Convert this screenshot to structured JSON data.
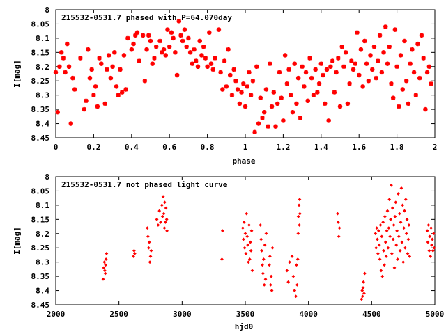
{
  "chart_data": [
    {
      "type": "scatter",
      "title": "215532-0531.7 phased with P=64.070day",
      "xlabel": "phase",
      "ylabel": "I[mag]",
      "xlim": [
        0,
        2
      ],
      "ylim": [
        8.45,
        8
      ],
      "y_inverted": true,
      "grid": false,
      "legend": "none",
      "marker_color": "#ff0000",
      "marker": "filled-star",
      "xticks": [
        "0",
        "0.2",
        "0.4",
        "0.6",
        "0.8",
        "1",
        "1.2",
        "1.4",
        "1.6",
        "1.8",
        "2"
      ],
      "yticks": [
        "8",
        "8.05",
        "8.1",
        "8.15",
        "8.2",
        "8.25",
        "8.3",
        "8.35",
        "8.4",
        "8.45"
      ],
      "points": [
        [
          0.0,
          8.22
        ],
        [
          0.01,
          8.36
        ],
        [
          0.02,
          8.2
        ],
        [
          0.03,
          8.15
        ],
        [
          0.04,
          8.17
        ],
        [
          0.05,
          8.22
        ],
        [
          0.06,
          8.12
        ],
        [
          0.07,
          8.2
        ],
        [
          0.08,
          8.4
        ],
        [
          0.09,
          8.24
        ],
        [
          0.1,
          8.28
        ],
        [
          0.13,
          8.17
        ],
        [
          0.15,
          8.35
        ],
        [
          0.16,
          8.32
        ],
        [
          0.17,
          8.14
        ],
        [
          0.18,
          8.24
        ],
        [
          0.19,
          8.21
        ],
        [
          0.2,
          8.3
        ],
        [
          0.21,
          8.27
        ],
        [
          0.22,
          8.34
        ],
        [
          0.23,
          8.17
        ],
        [
          0.24,
          8.19
        ],
        [
          0.26,
          8.33
        ],
        [
          0.27,
          8.21
        ],
        [
          0.28,
          8.16
        ],
        [
          0.29,
          8.24
        ],
        [
          0.3,
          8.2
        ],
        [
          0.31,
          8.15
        ],
        [
          0.32,
          8.27
        ],
        [
          0.33,
          8.3
        ],
        [
          0.34,
          8.21
        ],
        [
          0.35,
          8.29
        ],
        [
          0.36,
          8.16
        ],
        [
          0.37,
          8.28
        ],
        [
          0.38,
          8.1
        ],
        [
          0.4,
          8.14
        ],
        [
          0.41,
          8.12
        ],
        [
          0.42,
          8.09
        ],
        [
          0.43,
          8.08
        ],
        [
          0.44,
          8.18
        ],
        [
          0.46,
          8.09
        ],
        [
          0.47,
          8.25
        ],
        [
          0.48,
          8.14
        ],
        [
          0.49,
          8.09
        ],
        [
          0.5,
          8.11
        ],
        [
          0.51,
          8.19
        ],
        [
          0.52,
          8.17
        ],
        [
          0.53,
          8.13
        ],
        [
          0.55,
          8.11
        ],
        [
          0.56,
          8.15
        ],
        [
          0.57,
          8.14
        ],
        [
          0.58,
          8.16
        ],
        [
          0.59,
          8.07
        ],
        [
          0.6,
          8.13
        ],
        [
          0.61,
          8.08
        ],
        [
          0.62,
          8.1
        ],
        [
          0.63,
          8.15
        ],
        [
          0.64,
          8.23
        ],
        [
          0.65,
          8.04
        ],
        [
          0.66,
          8.09
        ],
        [
          0.67,
          8.11
        ],
        [
          0.68,
          8.07
        ],
        [
          0.69,
          8.13
        ],
        [
          0.7,
          8.1
        ],
        [
          0.71,
          8.15
        ],
        [
          0.72,
          8.19
        ],
        [
          0.73,
          8.14
        ],
        [
          0.74,
          8.18
        ],
        [
          0.75,
          8.2
        ],
        [
          0.76,
          8.11
        ],
        [
          0.77,
          8.16
        ],
        [
          0.78,
          8.13
        ],
        [
          0.79,
          8.17
        ],
        [
          0.8,
          8.2
        ],
        [
          0.81,
          8.08
        ],
        [
          0.82,
          8.19
        ],
        [
          0.83,
          8.21
        ],
        [
          0.84,
          8.17
        ],
        [
          0.86,
          8.07
        ],
        [
          0.87,
          8.22
        ],
        [
          0.88,
          8.28
        ],
        [
          0.89,
          8.18
        ],
        [
          0.9,
          8.27
        ],
        [
          0.91,
          8.14
        ],
        [
          0.92,
          8.23
        ],
        [
          0.93,
          8.3
        ],
        [
          0.94,
          8.21
        ],
        [
          0.95,
          8.25
        ],
        [
          0.96,
          8.28
        ],
        [
          0.97,
          8.33
        ],
        [
          0.98,
          8.29
        ],
        [
          0.99,
          8.26
        ],
        [
          1.0,
          8.34
        ],
        [
          1.01,
          8.27
        ],
        [
          1.02,
          8.22
        ],
        [
          1.03,
          8.3
        ],
        [
          1.04,
          8.25
        ],
        [
          1.05,
          8.43
        ],
        [
          1.06,
          8.2
        ],
        [
          1.07,
          8.4
        ],
        [
          1.08,
          8.31
        ],
        [
          1.09,
          8.38
        ],
        [
          1.1,
          8.36
        ],
        [
          1.11,
          8.28
        ],
        [
          1.12,
          8.41
        ],
        [
          1.13,
          8.19
        ],
        [
          1.14,
          8.34
        ],
        [
          1.15,
          8.29
        ],
        [
          1.16,
          8.41
        ],
        [
          1.17,
          8.33
        ],
        [
          1.18,
          8.22
        ],
        [
          1.19,
          8.31
        ],
        [
          1.2,
          8.39
        ],
        [
          1.21,
          8.16
        ],
        [
          1.22,
          8.26
        ],
        [
          1.23,
          8.21
        ],
        [
          1.24,
          8.3
        ],
        [
          1.25,
          8.36
        ],
        [
          1.26,
          8.19
        ],
        [
          1.27,
          8.33
        ],
        [
          1.28,
          8.24
        ],
        [
          1.29,
          8.38
        ],
        [
          1.3,
          8.2
        ],
        [
          1.31,
          8.27
        ],
        [
          1.32,
          8.22
        ],
        [
          1.33,
          8.32
        ],
        [
          1.34,
          8.17
        ],
        [
          1.35,
          8.24
        ],
        [
          1.36,
          8.3
        ],
        [
          1.37,
          8.21
        ],
        [
          1.38,
          8.29
        ],
        [
          1.39,
          8.26
        ],
        [
          1.4,
          8.19
        ],
        [
          1.41,
          8.23
        ],
        [
          1.42,
          8.33
        ],
        [
          1.43,
          8.21
        ],
        [
          1.44,
          8.39
        ],
        [
          1.45,
          8.2
        ],
        [
          1.46,
          8.18
        ],
        [
          1.47,
          8.29
        ],
        [
          1.48,
          8.22
        ],
        [
          1.49,
          8.17
        ],
        [
          1.5,
          8.34
        ],
        [
          1.51,
          8.13
        ],
        [
          1.52,
          8.2
        ],
        [
          1.53,
          8.15
        ],
        [
          1.54,
          8.33
        ],
        [
          1.55,
          8.26
        ],
        [
          1.56,
          8.18
        ],
        [
          1.57,
          8.21
        ],
        [
          1.58,
          8.19
        ],
        [
          1.59,
          8.08
        ],
        [
          1.6,
          8.23
        ],
        [
          1.61,
          8.14
        ],
        [
          1.62,
          8.27
        ],
        [
          1.63,
          8.11
        ],
        [
          1.64,
          8.19
        ],
        [
          1.65,
          8.25
        ],
        [
          1.66,
          8.16
        ],
        [
          1.67,
          8.21
        ],
        [
          1.68,
          8.13
        ],
        [
          1.69,
          8.24
        ],
        [
          1.7,
          8.18
        ],
        [
          1.71,
          8.09
        ],
        [
          1.72,
          8.22
        ],
        [
          1.73,
          8.15
        ],
        [
          1.74,
          8.06
        ],
        [
          1.75,
          8.19
        ],
        [
          1.76,
          8.13
        ],
        [
          1.77,
          8.26
        ],
        [
          1.78,
          8.31
        ],
        [
          1.79,
          8.07
        ],
        [
          1.8,
          8.2
        ],
        [
          1.81,
          8.34
        ],
        [
          1.82,
          8.16
        ],
        [
          1.83,
          8.28
        ],
        [
          1.84,
          8.11
        ],
        [
          1.85,
          8.25
        ],
        [
          1.86,
          8.33
        ],
        [
          1.87,
          8.19
        ],
        [
          1.88,
          8.14
        ],
        [
          1.89,
          8.22
        ],
        [
          1.9,
          8.3
        ],
        [
          1.91,
          8.12
        ],
        [
          1.92,
          8.24
        ],
        [
          1.93,
          8.09
        ],
        [
          1.94,
          8.17
        ],
        [
          1.95,
          8.35
        ],
        [
          1.96,
          8.22
        ],
        [
          1.97,
          8.2
        ],
        [
          1.98,
          8.26
        ]
      ]
    },
    {
      "type": "scatter",
      "title": "215532-0531.7 not phased light curve",
      "xlabel": "hjd0",
      "ylabel": "I[mag]",
      "xlim": [
        2000,
        5000
      ],
      "ylim": [
        8.45,
        8
      ],
      "y_inverted": true,
      "grid": false,
      "legend": "none",
      "marker_color": "#ff0000",
      "marker": "diamond",
      "xticks": [
        "2000",
        "2500",
        "3000",
        "3500",
        "4000",
        "4500",
        "5000"
      ],
      "yticks": [
        "8",
        "8.05",
        "8.1",
        "8.15",
        "8.2",
        "8.25",
        "8.3",
        "8.35",
        "8.4",
        "8.45"
      ],
      "points": [
        [
          2375,
          8.36
        ],
        [
          2380,
          8.32
        ],
        [
          2385,
          8.3
        ],
        [
          2388,
          8.33
        ],
        [
          2392,
          8.34
        ],
        [
          2395,
          8.31
        ],
        [
          2398,
          8.29
        ],
        [
          2402,
          8.27
        ],
        [
          2615,
          8.28
        ],
        [
          2620,
          8.26
        ],
        [
          2625,
          8.27
        ],
        [
          2725,
          8.18
        ],
        [
          2730,
          8.21
        ],
        [
          2735,
          8.25
        ],
        [
          2740,
          8.23
        ],
        [
          2745,
          8.3
        ],
        [
          2750,
          8.28
        ],
        [
          2755,
          8.26
        ],
        [
          2800,
          8.15
        ],
        [
          2810,
          8.17
        ],
        [
          2820,
          8.12
        ],
        [
          2830,
          8.16
        ],
        [
          2840,
          8.1
        ],
        [
          2845,
          8.14
        ],
        [
          2850,
          8.07
        ],
        [
          2855,
          8.13
        ],
        [
          2860,
          8.18
        ],
        [
          2862,
          8.09
        ],
        [
          2868,
          8.16
        ],
        [
          2872,
          8.11
        ],
        [
          2878,
          8.15
        ],
        [
          2880,
          8.19
        ],
        [
          3315,
          8.29
        ],
        [
          3320,
          8.19
        ],
        [
          3480,
          8.18
        ],
        [
          3485,
          8.22
        ],
        [
          3490,
          8.16
        ],
        [
          3495,
          8.25
        ],
        [
          3500,
          8.2
        ],
        [
          3505,
          8.27
        ],
        [
          3510,
          8.13
        ],
        [
          3515,
          8.21
        ],
        [
          3520,
          8.24
        ],
        [
          3525,
          8.3
        ],
        [
          3530,
          8.17
        ],
        [
          3535,
          8.29
        ],
        [
          3540,
          8.23
        ],
        [
          3545,
          8.26
        ],
        [
          3550,
          8.19
        ],
        [
          3555,
          8.33
        ],
        [
          3620,
          8.17
        ],
        [
          3625,
          8.22
        ],
        [
          3630,
          8.26
        ],
        [
          3635,
          8.31
        ],
        [
          3640,
          8.34
        ],
        [
          3645,
          8.29
        ],
        [
          3650,
          8.38
        ],
        [
          3655,
          8.24
        ],
        [
          3660,
          8.36
        ],
        [
          3665,
          8.2
        ],
        [
          3690,
          8.31
        ],
        [
          3695,
          8.28
        ],
        [
          3700,
          8.38
        ],
        [
          3705,
          8.35
        ],
        [
          3710,
          8.4
        ],
        [
          3715,
          8.25
        ],
        [
          3830,
          8.33
        ],
        [
          3840,
          8.37
        ],
        [
          3850,
          8.3
        ],
        [
          3870,
          8.28
        ],
        [
          3880,
          8.35
        ],
        [
          3890,
          8.4
        ],
        [
          3900,
          8.42
        ],
        [
          3905,
          8.31
        ],
        [
          3910,
          8.38
        ],
        [
          3915,
          8.29
        ],
        [
          3918,
          8.2
        ],
        [
          3920,
          8.14
        ],
        [
          3925,
          8.1
        ],
        [
          3928,
          8.17
        ],
        [
          3930,
          8.08
        ],
        [
          3932,
          8.13
        ],
        [
          4230,
          8.13
        ],
        [
          4235,
          8.16
        ],
        [
          4240,
          8.21
        ],
        [
          4245,
          8.18
        ],
        [
          4420,
          8.43
        ],
        [
          4425,
          8.4
        ],
        [
          4428,
          8.42
        ],
        [
          4432,
          8.39
        ],
        [
          4435,
          8.37
        ],
        [
          4440,
          8.41
        ],
        [
          4445,
          8.34
        ],
        [
          4530,
          8.2
        ],
        [
          4535,
          8.25
        ],
        [
          4540,
          8.18
        ],
        [
          4545,
          8.22
        ],
        [
          4550,
          8.27
        ],
        [
          4555,
          8.19
        ],
        [
          4560,
          8.24
        ],
        [
          4565,
          8.29
        ],
        [
          4570,
          8.17
        ],
        [
          4575,
          8.33
        ],
        [
          4580,
          8.21
        ],
        [
          4585,
          8.35
        ],
        [
          4590,
          8.16
        ],
        [
          4595,
          8.26
        ],
        [
          4600,
          8.31
        ],
        [
          4605,
          8.14
        ],
        [
          4610,
          8.23
        ],
        [
          4615,
          8.28
        ],
        [
          4620,
          8.19
        ],
        [
          4625,
          8.12
        ],
        [
          4630,
          8.25
        ],
        [
          4635,
          8.18
        ],
        [
          4640,
          8.08
        ],
        [
          4645,
          8.21
        ],
        [
          4650,
          8.15
        ],
        [
          4655,
          8.03
        ],
        [
          4660,
          8.27
        ],
        [
          4665,
          8.11
        ],
        [
          4670,
          8.22
        ],
        [
          4675,
          8.17
        ],
        [
          4680,
          8.32
        ],
        [
          4685,
          8.14
        ],
        [
          4690,
          8.09
        ],
        [
          4695,
          8.24
        ],
        [
          4700,
          8.19
        ],
        [
          4705,
          8.29
        ],
        [
          4710,
          8.06
        ],
        [
          4715,
          8.21
        ],
        [
          4720,
          8.13
        ],
        [
          4725,
          8.26
        ],
        [
          4730,
          8.16
        ],
        [
          4735,
          8.04
        ],
        [
          4740,
          8.23
        ],
        [
          4745,
          8.1
        ],
        [
          4750,
          8.3
        ],
        [
          4755,
          8.18
        ],
        [
          4760,
          8.12
        ],
        [
          4765,
          8.25
        ],
        [
          4770,
          8.08
        ],
        [
          4775,
          8.2
        ],
        [
          4780,
          8.15
        ],
        [
          4785,
          8.27
        ],
        [
          4790,
          8.22
        ],
        [
          4795,
          8.17
        ],
        [
          4800,
          8.28
        ],
        [
          4940,
          8.19
        ],
        [
          4945,
          8.23
        ],
        [
          4950,
          8.17
        ],
        [
          4955,
          8.26
        ],
        [
          4960,
          8.21
        ],
        [
          4965,
          8.28
        ],
        [
          4970,
          8.18
        ],
        [
          4975,
          8.24
        ],
        [
          4980,
          8.22
        ],
        [
          4985,
          8.26
        ],
        [
          4990,
          8.2
        ],
        [
          4995,
          8.25
        ]
      ]
    }
  ]
}
